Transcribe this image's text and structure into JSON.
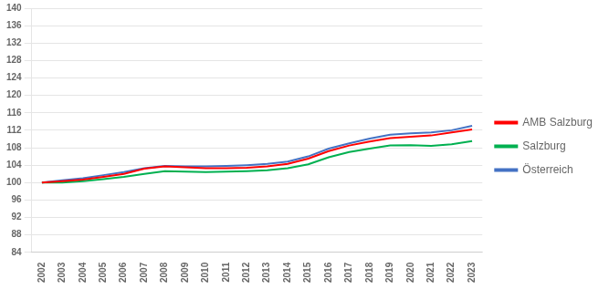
{
  "chart_data": {
    "type": "line",
    "categories": [
      "2002",
      "2003",
      "2004",
      "2005",
      "2006",
      "2007",
      "2008",
      "2009",
      "2010",
      "2011",
      "2012",
      "2013",
      "2014",
      "2015",
      "2016",
      "2017",
      "2018",
      "2019",
      "2020",
      "2021",
      "2022",
      "2023"
    ],
    "series": [
      {
        "name": "AMB Salzburg",
        "color": "#ff0000",
        "values": [
          100.0,
          100.3,
          100.7,
          101.3,
          102.0,
          103.2,
          103.7,
          103.5,
          103.3,
          103.3,
          103.4,
          103.7,
          104.3,
          105.5,
          107.2,
          108.5,
          109.4,
          110.2,
          110.5,
          110.8,
          111.5,
          112.2
        ]
      },
      {
        "name": "Salzburg",
        "color": "#00b050",
        "values": [
          100.0,
          100.0,
          100.3,
          100.8,
          101.3,
          102.0,
          102.6,
          102.5,
          102.4,
          102.5,
          102.6,
          102.8,
          103.3,
          104.2,
          105.8,
          107.0,
          107.8,
          108.5,
          108.6,
          108.4,
          108.8,
          109.5
        ]
      },
      {
        "name": "Österreich",
        "color": "#4472c4",
        "values": [
          100.0,
          100.5,
          101.0,
          101.7,
          102.4,
          103.3,
          103.8,
          103.7,
          103.7,
          103.8,
          104.0,
          104.3,
          104.8,
          106.0,
          107.8,
          109.0,
          110.1,
          111.0,
          111.3,
          111.5,
          112.0,
          113.0
        ]
      }
    ],
    "ylim": [
      84,
      140
    ],
    "yticks": [
      84,
      88,
      92,
      96,
      100,
      104,
      108,
      112,
      116,
      120,
      124,
      128,
      132,
      136,
      140
    ],
    "grid": true,
    "legend": "right"
  }
}
